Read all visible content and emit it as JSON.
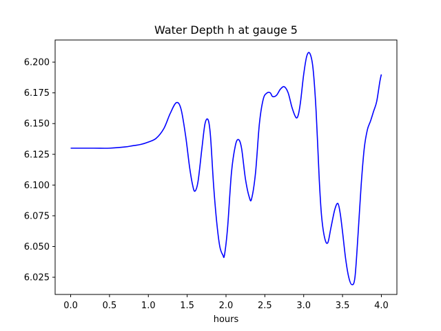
{
  "chart_data": {
    "type": "line",
    "title": "Water Depth h at gauge 5",
    "xlabel": "hours",
    "ylabel": "",
    "xlim": [
      -0.2,
      4.2
    ],
    "ylim": [
      6.011,
      6.218
    ],
    "xticks": [
      0.0,
      0.5,
      1.0,
      1.5,
      2.0,
      2.5,
      3.0,
      3.5,
      4.0
    ],
    "xtick_labels": [
      "0.0",
      "0.5",
      "1.0",
      "1.5",
      "2.0",
      "2.5",
      "3.0",
      "3.5",
      "4.0"
    ],
    "yticks": [
      6.025,
      6.05,
      6.075,
      6.1,
      6.125,
      6.15,
      6.175,
      6.2
    ],
    "ytick_labels": [
      "6.025",
      "6.050",
      "6.075",
      "6.100",
      "6.125",
      "6.150",
      "6.175",
      "6.200"
    ],
    "grid": false,
    "series": [
      {
        "color": "#0000ff",
        "x": [
          0.0,
          0.3,
          0.5,
          0.7,
          0.8,
          0.9,
          1.0,
          1.1,
          1.2,
          1.28,
          1.36,
          1.42,
          1.48,
          1.53,
          1.57,
          1.6,
          1.64,
          1.69,
          1.73,
          1.77,
          1.8,
          1.84,
          1.88,
          1.92,
          1.96,
          1.98,
          2.02,
          2.07,
          2.12,
          2.16,
          2.2,
          2.25,
          2.3,
          2.33,
          2.38,
          2.43,
          2.48,
          2.53,
          2.57,
          2.6,
          2.65,
          2.7,
          2.75,
          2.8,
          2.85,
          2.9,
          2.93,
          2.96,
          3.0,
          3.04,
          3.08,
          3.12,
          3.16,
          3.2,
          3.23,
          3.27,
          3.31,
          3.35,
          3.4,
          3.44,
          3.47,
          3.5,
          3.54,
          3.58,
          3.62,
          3.66,
          3.7,
          3.74,
          3.78,
          3.82,
          3.86,
          3.9,
          3.94,
          3.98,
          4.0
        ],
        "y": [
          6.13,
          6.13,
          6.13,
          6.131,
          6.132,
          6.133,
          6.135,
          6.138,
          6.146,
          6.158,
          6.167,
          6.162,
          6.14,
          6.115,
          6.1,
          6.095,
          6.103,
          6.13,
          6.15,
          6.153,
          6.14,
          6.1,
          6.07,
          6.05,
          6.043,
          6.043,
          6.065,
          6.11,
          6.132,
          6.137,
          6.13,
          6.105,
          6.09,
          6.089,
          6.11,
          6.15,
          6.17,
          6.175,
          6.175,
          6.172,
          6.173,
          6.178,
          6.18,
          6.175,
          6.163,
          6.155,
          6.157,
          6.168,
          6.19,
          6.205,
          6.207,
          6.195,
          6.16,
          6.105,
          6.075,
          6.057,
          6.053,
          6.065,
          6.08,
          6.085,
          6.077,
          6.062,
          6.04,
          6.025,
          6.019,
          6.025,
          6.06,
          6.1,
          6.13,
          6.145,
          6.152,
          6.16,
          6.168,
          6.184,
          6.19
        ]
      }
    ]
  }
}
